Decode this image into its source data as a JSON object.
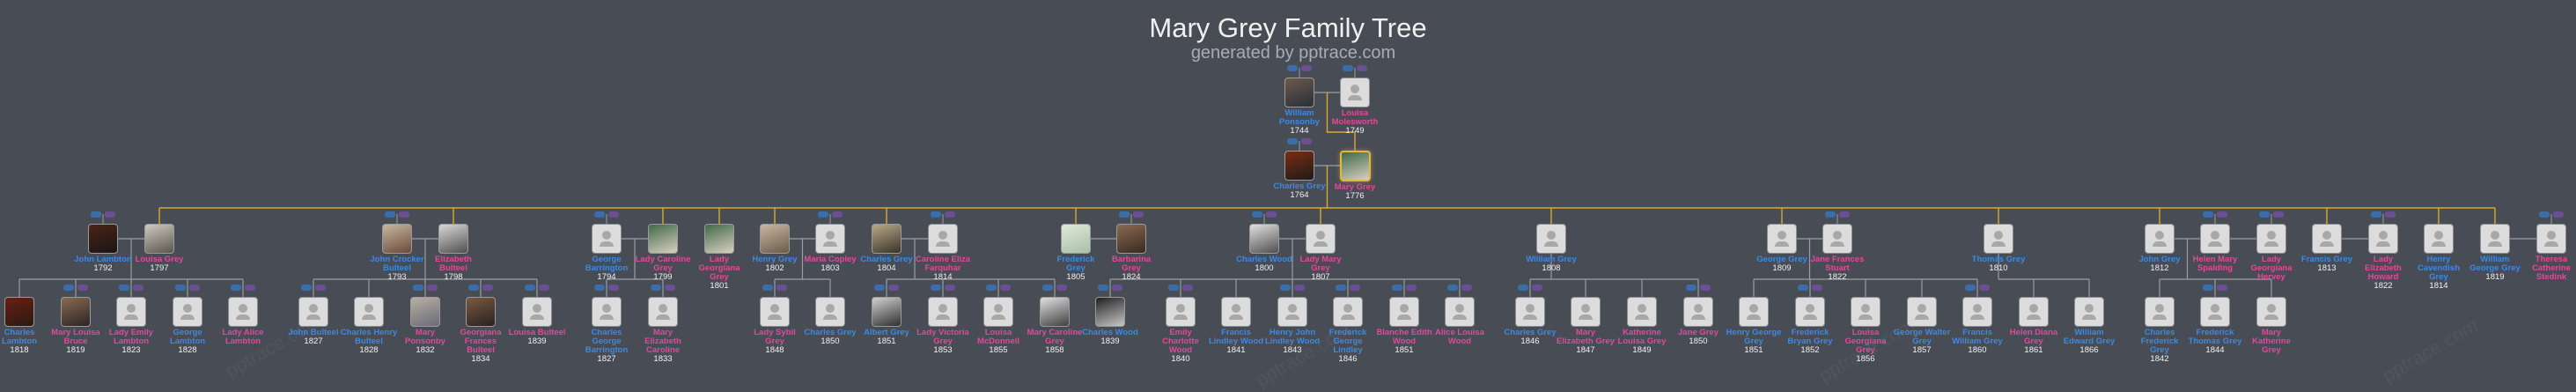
{
  "header": {
    "title": "Mary Grey Family Tree",
    "subtitle": "generated by pptrace.com"
  },
  "watermark": "pptrace.com",
  "colors": {
    "background": "#474c55",
    "male": "#3a8ae6",
    "female": "#e5479b",
    "descent_line": "#d9a830",
    "family_line": "#9a9ea5",
    "father_pill": "#3b6ea8",
    "mother_pill": "#6a4f92",
    "focus_border": "#e6b53a"
  },
  "focus_person": "Mary Grey",
  "people": [
    {
      "name": "William Ponsonby",
      "year": "1744",
      "gender": "m"
    },
    {
      "name": "Louisa Molesworth",
      "year": "1749",
      "gender": "f"
    },
    {
      "name": "Charles Grey",
      "year": "1764",
      "gender": "m"
    },
    {
      "name": "Mary Grey",
      "year": "1776",
      "gender": "f"
    },
    {
      "name": "John Lambton",
      "year": "1792",
      "gender": "m"
    },
    {
      "name": "Louisa Grey",
      "year": "1797",
      "gender": "f"
    },
    {
      "name": "John Crocker Bulteel",
      "year": "1793",
      "gender": "m"
    },
    {
      "name": "Elizabeth Bulteel",
      "year": "1798",
      "gender": "f"
    },
    {
      "name": "George Barrington",
      "year": "1794",
      "gender": "m"
    },
    {
      "name": "Lady Caroline Grey",
      "year": "1799",
      "gender": "f"
    },
    {
      "name": "Lady Georgiana Grey",
      "year": "1801",
      "gender": "f"
    },
    {
      "name": "Henry Grey",
      "year": "1802",
      "gender": "m"
    },
    {
      "name": "Maria Copley",
      "year": "1803",
      "gender": "f"
    },
    {
      "name": "Charles Grey",
      "year": "1804",
      "gender": "m"
    },
    {
      "name": "Caroline Eliza Farquhar",
      "year": "1814",
      "gender": "f"
    },
    {
      "name": "Frederick Grey",
      "year": "1805",
      "gender": "m"
    },
    {
      "name": "Barbarina Grey",
      "year": "1824",
      "gender": "f"
    },
    {
      "name": "Charles Wood",
      "year": "1800",
      "gender": "m"
    },
    {
      "name": "Lady Mary Grey",
      "year": "1807",
      "gender": "f"
    },
    {
      "name": "William Grey",
      "year": "1808",
      "gender": "m"
    },
    {
      "name": "George Grey",
      "year": "1809",
      "gender": "m"
    },
    {
      "name": "Jane Frances Stuart",
      "year": "1822",
      "gender": "f"
    },
    {
      "name": "Thomas Grey",
      "year": "1810",
      "gender": "m"
    },
    {
      "name": "John Grey",
      "year": "1812",
      "gender": "m"
    },
    {
      "name": "Helen Mary Spalding",
      "year": "",
      "gender": "f"
    },
    {
      "name": "Lady Georgiana Hervey",
      "year": "",
      "gender": "f"
    },
    {
      "name": "Francis Grey",
      "year": "1813",
      "gender": "m"
    },
    {
      "name": "Lady Elizabeth Howard",
      "year": "1822",
      "gender": "f"
    },
    {
      "name": "Henry Cavendish Grey",
      "year": "1814",
      "gender": "m"
    },
    {
      "name": "William George Grey",
      "year": "1819",
      "gender": "m"
    },
    {
      "name": "Theresa Catherine Stedink",
      "year": "",
      "gender": "f"
    },
    {
      "name": "Charles Lambton",
      "year": "1818",
      "gender": "m"
    },
    {
      "name": "Mary Louisa Bruce",
      "year": "1819",
      "gender": "f"
    },
    {
      "name": "Lady Emily Lambton",
      "year": "1823",
      "gender": "f"
    },
    {
      "name": "George Lambton",
      "year": "1828",
      "gender": "m"
    },
    {
      "name": "Lady Alice Lambton",
      "year": "",
      "gender": "f"
    },
    {
      "name": "John Bulteel",
      "year": "1827",
      "gender": "m"
    },
    {
      "name": "Charles Henry Bulteel",
      "year": "1828",
      "gender": "m"
    },
    {
      "name": "Mary Ponsonby",
      "year": "1832",
      "gender": "f"
    },
    {
      "name": "Georgiana Frances Bulteel",
      "year": "1834",
      "gender": "f"
    },
    {
      "name": "Louisa Bulteel",
      "year": "1839",
      "gender": "f"
    },
    {
      "name": "Charles George Barrington",
      "year": "1827",
      "gender": "m"
    },
    {
      "name": "Mary Elizabeth Caroline",
      "year": "1833",
      "gender": "f"
    },
    {
      "name": "Lady Sybil Grey",
      "year": "1848",
      "gender": "f"
    },
    {
      "name": "Charles Grey",
      "year": "1850",
      "gender": "m"
    },
    {
      "name": "Albert Grey",
      "year": "1851",
      "gender": "m"
    },
    {
      "name": "Lady Victoria Grey",
      "year": "1853",
      "gender": "f"
    },
    {
      "name": "Louisa McDonnell",
      "year": "1855",
      "gender": "f"
    },
    {
      "name": "Mary Caroline Grey",
      "year": "1858",
      "gender": "f"
    },
    {
      "name": "Charles Wood",
      "year": "1839",
      "gender": "m"
    },
    {
      "name": "Emily Charlotte Wood",
      "year": "1840",
      "gender": "f"
    },
    {
      "name": "Francis Lindley Wood",
      "year": "1841",
      "gender": "m"
    },
    {
      "name": "Henry John Lindley Wood",
      "year": "1843",
      "gender": "m"
    },
    {
      "name": "Frederick George Lindley",
      "year": "1846",
      "gender": "m"
    },
    {
      "name": "Blanche Edith Wood",
      "year": "1851",
      "gender": "f"
    },
    {
      "name": "Alice Louisa Wood",
      "year": "",
      "gender": "f"
    },
    {
      "name": "Charles Grey",
      "year": "1846",
      "gender": "m"
    },
    {
      "name": "Mary Elizabeth Grey",
      "year": "1847",
      "gender": "f"
    },
    {
      "name": "Katherine Louisa Grey",
      "year": "1849",
      "gender": "f"
    },
    {
      "name": "Jane Grey",
      "year": "1850",
      "gender": "f"
    },
    {
      "name": "Henry George Grey",
      "year": "1851",
      "gender": "m"
    },
    {
      "name": "Frederick Bryan Grey",
      "year": "1852",
      "gender": "m"
    },
    {
      "name": "Louisa Georgiana Grey",
      "year": "1856",
      "gender": "f"
    },
    {
      "name": "George Walter Grey",
      "year": "1857",
      "gender": "m"
    },
    {
      "name": "Francis William Grey",
      "year": "1860",
      "gender": "m"
    },
    {
      "name": "Helen Diana Grey",
      "year": "1861",
      "gender": "f"
    },
    {
      "name": "William Edward Grey",
      "year": "1866",
      "gender": "m"
    },
    {
      "name": "Charles Frederick Grey",
      "year": "1842",
      "gender": "m"
    },
    {
      "name": "Frederick Thomas Grey",
      "year": "1844",
      "gender": "m"
    },
    {
      "name": "Mary Katherine Grey",
      "year": "",
      "gender": "f"
    }
  ]
}
